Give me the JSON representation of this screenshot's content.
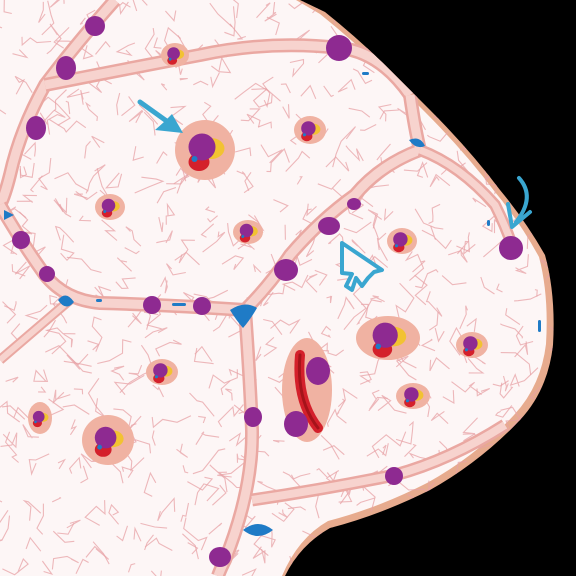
{
  "colors": {
    "background": "#000000",
    "tissue": "#fdf6f6",
    "capsule_edge": "#e6a98a",
    "septum": "#f6d0cc",
    "septum_edge": "#eaa8a2",
    "matrix_lines": "#e7a2a6",
    "nucleus": "#8e2a91",
    "nucleus_dark": "#6d1f70",
    "lacuna_halo": "#f0b2a2",
    "rbc": "#d4202b",
    "rbc_dark": "#a5131a",
    "yellow_cell": "#f2c232",
    "endothelial": "#1f7bc6",
    "arrow": "#3aa6d0"
  },
  "arrows": [
    {
      "name": "solid-arrow-icon",
      "style": "solid"
    },
    {
      "name": "outline-arrow-icon",
      "style": "outline"
    },
    {
      "name": "curved-arrow-icon",
      "style": "curved"
    }
  ]
}
